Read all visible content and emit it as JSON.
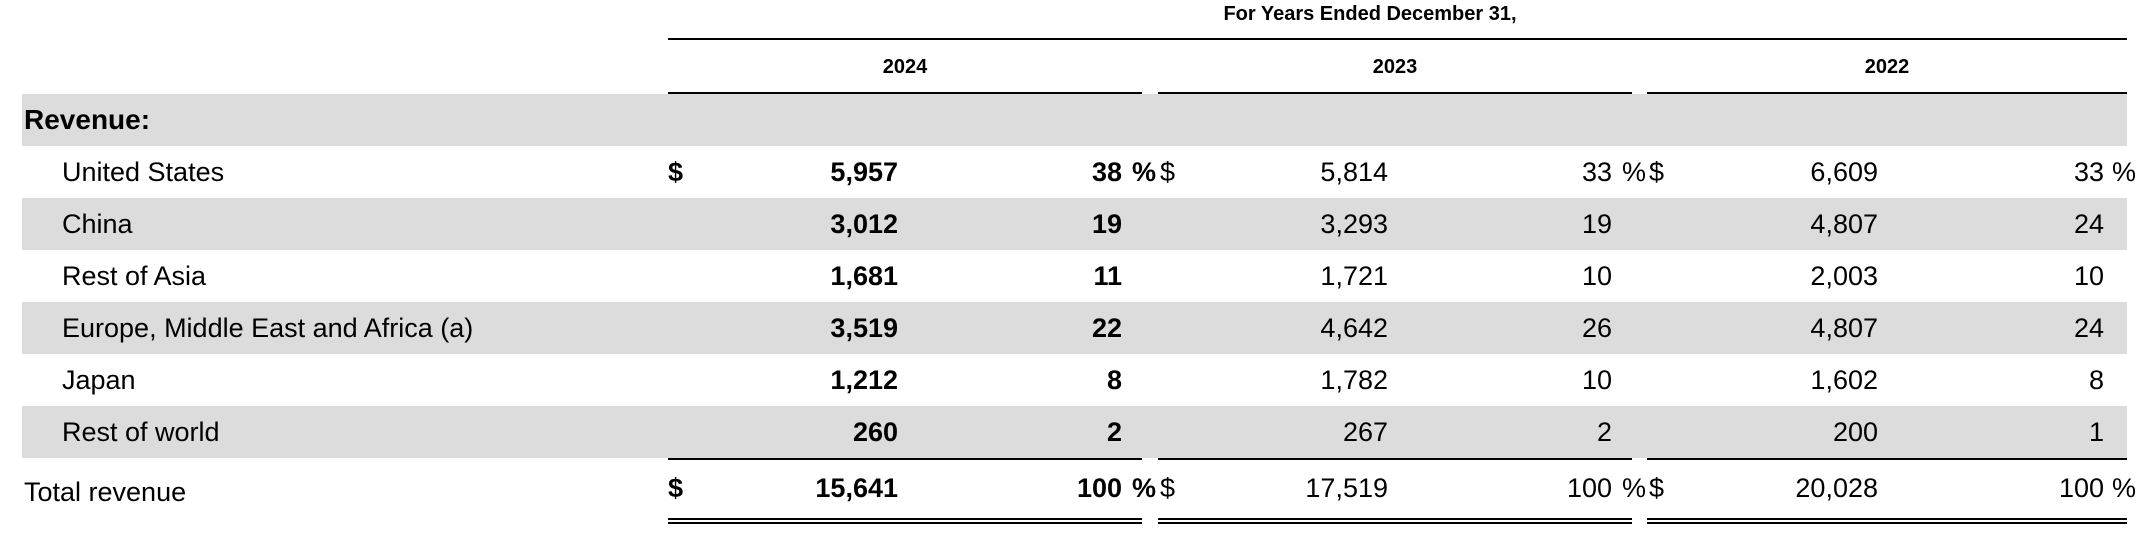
{
  "header": {
    "title": "For Years Ended December 31,",
    "years": [
      "2024",
      "2023",
      "2022"
    ]
  },
  "section": {
    "label": "Revenue:"
  },
  "rows": [
    {
      "label": "United States",
      "values": [
        "5,957",
        "38",
        "5,814",
        "33",
        "6,609",
        "33"
      ]
    },
    {
      "label": "China",
      "values": [
        "3,012",
        "19",
        "3,293",
        "19",
        "4,807",
        "24"
      ]
    },
    {
      "label": "Rest of Asia",
      "values": [
        "1,681",
        "11",
        "1,721",
        "10",
        "2,003",
        "10"
      ]
    },
    {
      "label": "Europe, Middle East and Africa (a)",
      "values": [
        "3,519",
        "22",
        "4,642",
        "26",
        "4,807",
        "24"
      ]
    },
    {
      "label": "Japan",
      "values": [
        "1,212",
        "8",
        "1,782",
        "10",
        "1,602",
        "8"
      ]
    },
    {
      "label": "Rest of world",
      "values": [
        "260",
        "2",
        "267",
        "2",
        "200",
        "1"
      ]
    }
  ],
  "total": {
    "label": "Total revenue",
    "values": [
      "15,641",
      "100",
      "17,519",
      "100",
      "20,028",
      "100"
    ]
  },
  "symbols": {
    "currency": "$",
    "percent": "%"
  }
}
